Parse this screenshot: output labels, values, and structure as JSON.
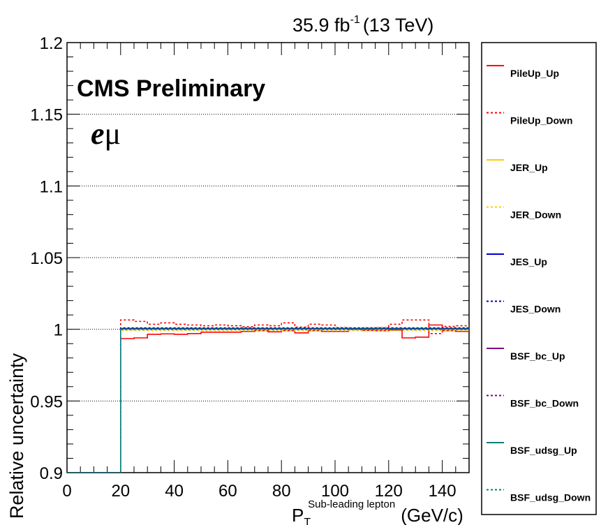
{
  "header": {
    "lumi": "35.9 fb",
    "lumi_exp": "-1",
    "energy": "(13 TeV)"
  },
  "labels": {
    "cms": "CMS Preliminary",
    "channel_e": "e",
    "channel_mu": "μ"
  },
  "colors": {
    "pileup": "#ff0000",
    "jer": "#ffcc00",
    "jes": "#0000cc",
    "bsf_bc": "#800080",
    "bsf_udsg": "#00807f"
  },
  "chart_data": {
    "type": "line",
    "title": "",
    "xlabel": "P",
    "xlabel_sub": "T",
    "xlabel_sup": "Sub-leading lepton",
    "xlabel_unit": "(GeV/c)",
    "ylabel": "Relative uncertainty",
    "xlim": [
      0,
      150
    ],
    "ylim": [
      0.9,
      1.2
    ],
    "x_ticks": [
      "0",
      "20",
      "40",
      "60",
      "80",
      "100",
      "120",
      "140"
    ],
    "y_ticks": [
      "0.9",
      "0.95",
      "1",
      "1.05",
      "1.1",
      "1.15",
      "1.2"
    ],
    "grid": "horizontal dotted",
    "legend_position": "right",
    "bin_edges": [
      0,
      20,
      25,
      30,
      35,
      40,
      45,
      50,
      55,
      60,
      65,
      70,
      75,
      80,
      85,
      90,
      95,
      100,
      105,
      110,
      115,
      120,
      125,
      130,
      135,
      140,
      145,
      150
    ],
    "series": [
      {
        "name": "PileUp_Up",
        "color": "#ff0000",
        "dash": "solid",
        "width": 1.6,
        "values": [
          0.9,
          0.9935,
          0.994,
          0.9965,
          0.9968,
          0.9965,
          0.997,
          0.998,
          0.998,
          0.998,
          0.9985,
          0.999,
          0.9982,
          0.999,
          0.9975,
          0.999,
          0.9985,
          0.9985,
          1.0,
          0.9992,
          0.999,
          0.9995,
          0.994,
          0.9945,
          1.003,
          0.999,
          0.9985
        ]
      },
      {
        "name": "PileUp_Down",
        "color": "#ff0000",
        "dash": "dot",
        "width": 1.6,
        "values": [
          0.9,
          1.0065,
          1.0055,
          1.0035,
          1.0045,
          1.0035,
          1.003,
          1.0025,
          1.003,
          1.0025,
          1.0018,
          1.003,
          1.0025,
          1.0045,
          1.0015,
          1.0035,
          1.003,
          1.0012,
          1.0008,
          1.001,
          1.0012,
          1.0035,
          1.0065,
          1.0065,
          0.997,
          1.002,
          1.0025
        ]
      },
      {
        "name": "JER_Up",
        "color": "#ffcc00",
        "dash": "solid",
        "width": 1.4,
        "values": [
          0.9,
          1.001,
          1.001,
          1.001,
          1.001,
          1.001,
          1.001,
          1.001,
          1.001,
          1.001,
          1.001,
          1.001,
          1.001,
          1.001,
          1.001,
          1.001,
          1.001,
          1.001,
          1.001,
          1.001,
          1.001,
          1.001,
          1.001,
          1.001,
          1.001,
          1.001,
          1.001
        ]
      },
      {
        "name": "JER_Down",
        "color": "#ffcc00",
        "dash": "dot",
        "width": 1.4,
        "values": [
          0.9,
          0.999,
          0.999,
          0.999,
          0.999,
          0.999,
          0.999,
          0.999,
          0.999,
          0.999,
          0.999,
          0.999,
          0.999,
          0.999,
          0.999,
          0.999,
          0.999,
          0.999,
          0.999,
          0.999,
          0.999,
          0.999,
          0.999,
          0.999,
          0.999,
          0.999,
          0.999
        ]
      },
      {
        "name": "JES_Up",
        "color": "#0000cc",
        "dash": "solid",
        "width": 1.4,
        "values": [
          0.9,
          1.0005,
          1.0005,
          1.0005,
          1.0005,
          1.0005,
          1.0005,
          1.0005,
          1.0005,
          1.0005,
          1.0005,
          1.0005,
          1.0005,
          1.0005,
          1.0005,
          1.0005,
          1.0005,
          1.0005,
          1.0005,
          1.0005,
          1.0005,
          1.0005,
          1.0005,
          1.0005,
          1.0005,
          1.0005,
          1.0005
        ]
      },
      {
        "name": "JES_Down",
        "color": "#0000cc",
        "dash": "dot",
        "width": 1.4,
        "values": [
          0.9,
          1.001,
          1.001,
          1.001,
          1.001,
          1.001,
          1.001,
          1.001,
          1.001,
          1.001,
          1.001,
          1.001,
          1.001,
          1.001,
          1.001,
          1.001,
          1.001,
          1.001,
          1.001,
          1.001,
          1.001,
          1.001,
          1.001,
          1.001,
          1.001,
          1.001,
          1.001
        ]
      },
      {
        "name": "BSF_bc_Up",
        "color": "#800080",
        "dash": "solid",
        "width": 1.4,
        "values": [
          0.9,
          1.0002,
          1.0002,
          1.0002,
          1.0002,
          1.0002,
          1.0002,
          1.0002,
          1.0002,
          1.0002,
          1.0002,
          1.0002,
          1.0002,
          1.0002,
          1.0002,
          1.0002,
          1.0002,
          1.0002,
          1.0002,
          1.0002,
          1.0002,
          1.0002,
          1.0002,
          1.0002,
          1.0002,
          1.0002,
          1.0002
        ]
      },
      {
        "name": "BSF_bc_Down",
        "color": "#800080",
        "dash": "dot",
        "width": 1.4,
        "values": [
          0.9,
          0.9998,
          0.9998,
          0.9998,
          0.9998,
          0.9998,
          0.9998,
          0.9998,
          0.9998,
          0.9998,
          0.9998,
          0.9998,
          0.9998,
          0.9998,
          0.9998,
          0.9998,
          0.9998,
          0.9998,
          0.9998,
          0.9998,
          0.9998,
          0.9998,
          0.9998,
          0.9998,
          0.9998,
          0.9998,
          0.9998
        ]
      },
      {
        "name": "BSF_udsg_Up",
        "color": "#00807f",
        "dash": "solid",
        "width": 1.6,
        "values": [
          0.9,
          1.0002,
          1.0002,
          1.0002,
          1.0002,
          1.0002,
          1.0002,
          1.0002,
          1.0002,
          1.0002,
          1.0002,
          1.0002,
          1.0002,
          1.0002,
          1.0002,
          1.0002,
          1.0002,
          1.0002,
          1.0002,
          1.0002,
          1.0002,
          1.0002,
          1.0002,
          1.0002,
          1.0002,
          1.0002,
          1.0002
        ]
      },
      {
        "name": "BSF_udsg_Down",
        "color": "#00807f",
        "dash": "dot",
        "width": 1.4,
        "values": [
          0.9,
          0.9998,
          0.9998,
          0.9998,
          0.9998,
          0.9998,
          0.9998,
          0.9998,
          0.9998,
          0.9998,
          0.9998,
          0.9998,
          0.9998,
          0.9998,
          0.9998,
          0.9998,
          0.9998,
          0.9998,
          0.9998,
          0.9998,
          0.9998,
          0.9998,
          0.9998,
          0.9998,
          0.9998,
          0.9998,
          0.9998
        ]
      }
    ]
  }
}
